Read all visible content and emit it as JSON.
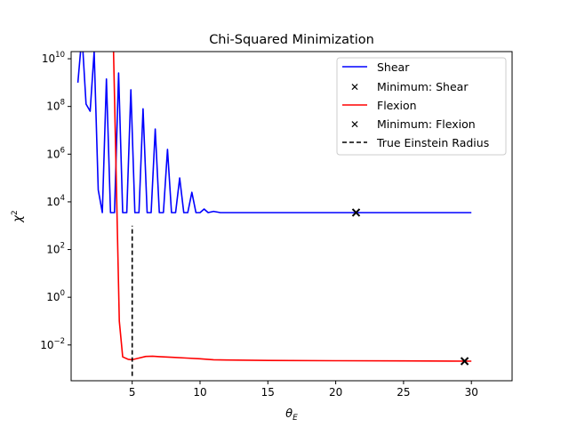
{
  "chart_data": {
    "type": "line",
    "title": "Chi-Squared Minimization",
    "xlabel": "θ",
    "xlabel_sub": "E",
    "ylabel": "χ",
    "ylabel_sup": "2",
    "yscale": "log",
    "xlim": [
      0.5,
      33
    ],
    "ylim_exp": [
      -3.5,
      10.3
    ],
    "x_ticks": [
      5,
      10,
      15,
      20,
      25,
      30
    ],
    "x_tick_labels": [
      "5",
      "10",
      "15",
      "20",
      "25",
      "30"
    ],
    "y_tick_exps": [
      -2,
      0,
      2,
      4,
      6,
      8,
      10
    ],
    "y_tick_labels": [
      {
        "base": "10",
        "exp": "−2"
      },
      {
        "base": "10",
        "exp": "0"
      },
      {
        "base": "10",
        "exp": "2"
      },
      {
        "base": "10",
        "exp": "4"
      },
      {
        "base": "10",
        "exp": "6"
      },
      {
        "base": "10",
        "exp": "8"
      },
      {
        "base": "10",
        "exp": "10"
      }
    ],
    "legend_position": "upper right",
    "series": [
      {
        "name": "Shear",
        "color": "#0000ff",
        "style": "line",
        "x": [
          1.0,
          1.3,
          1.6,
          1.9,
          2.2,
          2.5,
          2.8,
          3.1,
          3.4,
          3.7,
          4.0,
          4.3,
          4.6,
          4.9,
          5.2,
          5.5,
          5.8,
          6.1,
          6.4,
          6.7,
          7.0,
          7.3,
          7.6,
          7.9,
          8.2,
          8.5,
          8.8,
          9.1,
          9.4,
          9.7,
          10.0,
          10.3,
          10.6,
          11.0,
          11.5,
          12.0,
          15.0,
          20.0,
          25.0,
          30.0
        ],
        "log10": [
          9.0,
          11.0,
          8.1,
          7.8,
          10.3,
          4.5,
          3.55,
          9.15,
          3.55,
          3.55,
          9.4,
          3.55,
          3.55,
          8.7,
          3.55,
          3.55,
          7.9,
          3.55,
          3.55,
          7.05,
          3.55,
          3.55,
          6.2,
          3.55,
          3.55,
          5.0,
          3.55,
          3.55,
          4.4,
          3.55,
          3.55,
          3.7,
          3.55,
          3.6,
          3.55,
          3.55,
          3.55,
          3.55,
          3.55,
          3.55
        ]
      },
      {
        "name": "Minimum: Shear",
        "color": "#000000",
        "style": "marker",
        "x": [
          21.5
        ],
        "log10": [
          3.55
        ]
      },
      {
        "name": "Flexion",
        "color": "#ff0000",
        "style": "line",
        "x": [
          3.6,
          3.75,
          3.9,
          4.05,
          4.3,
          4.7,
          5.0,
          5.5,
          6.0,
          6.5,
          7.0,
          8.0,
          9.0,
          10.0,
          11.0,
          12.0,
          15.0,
          20.0,
          25.0,
          30.0
        ],
        "log10": [
          11.0,
          7.0,
          3.0,
          -1.0,
          -2.5,
          -2.6,
          -2.62,
          -2.55,
          -2.48,
          -2.47,
          -2.49,
          -2.52,
          -2.55,
          -2.58,
          -2.62,
          -2.63,
          -2.65,
          -2.66,
          -2.67,
          -2.68
        ]
      },
      {
        "name": "Minimum: Flexion",
        "color": "#000000",
        "style": "marker",
        "x": [
          29.5
        ],
        "log10": [
          -2.68
        ]
      },
      {
        "name": "True Einstein Radius",
        "color": "#000000",
        "style": "dashed",
        "x": [
          5.0,
          5.0
        ],
        "log10": [
          -3.3,
          3.0
        ]
      }
    ]
  }
}
